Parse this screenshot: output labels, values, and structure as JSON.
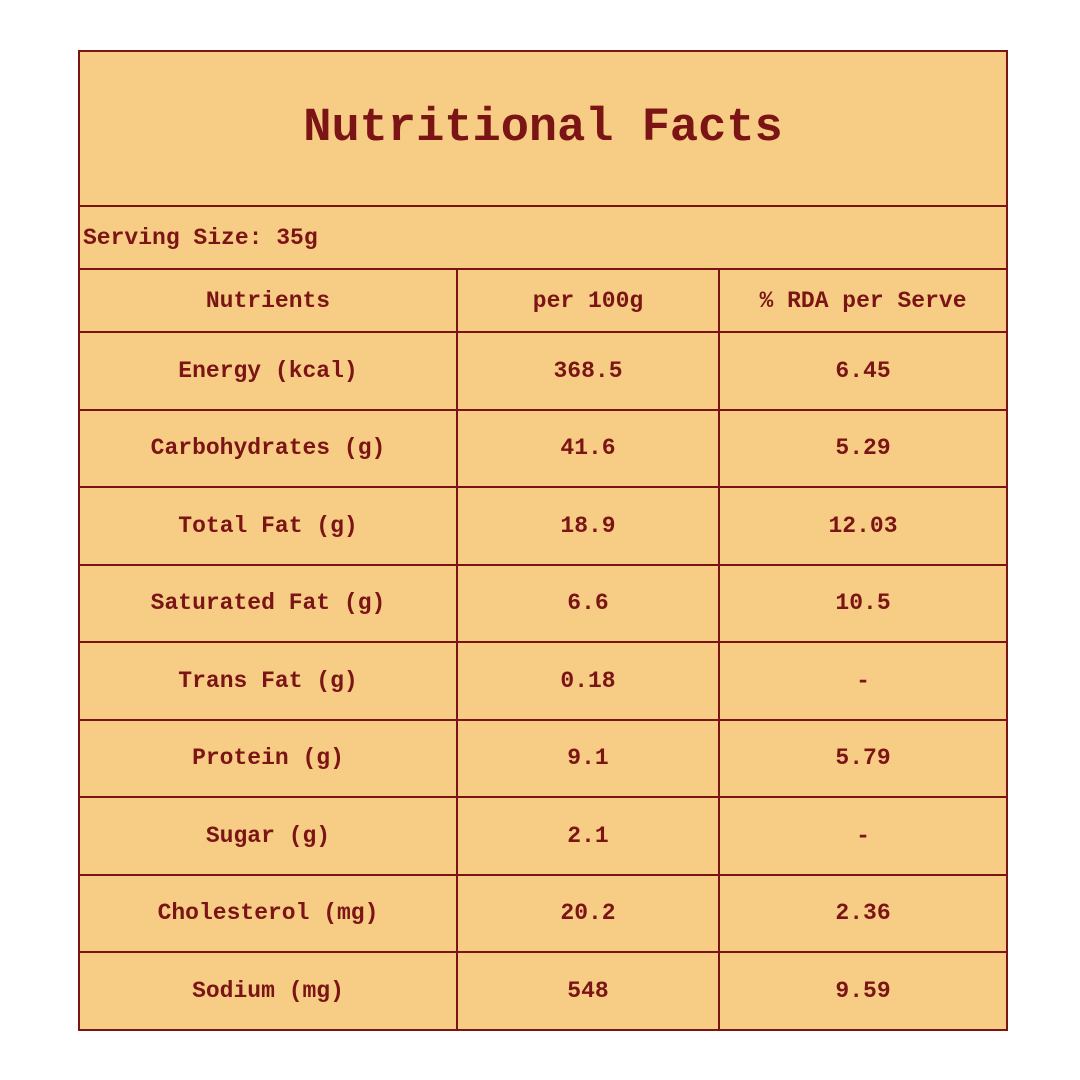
{
  "title": "Nutritional Facts",
  "serving_size": "Serving Size: 35g",
  "table": {
    "header": [
      "Nutrients",
      "per 100g",
      "% RDA per Serve"
    ],
    "rows": [
      [
        "Energy (kcal)",
        "368.5",
        "6.45"
      ],
      [
        "Carbohydrates (g)",
        "41.6",
        "5.29"
      ],
      [
        "Total Fat (g)",
        "18.9",
        "12.03"
      ],
      [
        "Saturated Fat (g)",
        "6.6",
        "10.5"
      ],
      [
        "Trans Fat (g)",
        "0.18",
        "-"
      ],
      [
        "Protein (g)",
        "9.1",
        "5.79"
      ],
      [
        "Sugar (g)",
        "2.1",
        "-"
      ],
      [
        "Cholesterol (mg)",
        "20.2",
        "2.36"
      ],
      [
        "Sodium (mg)",
        "548",
        "9.59"
      ]
    ]
  }
}
